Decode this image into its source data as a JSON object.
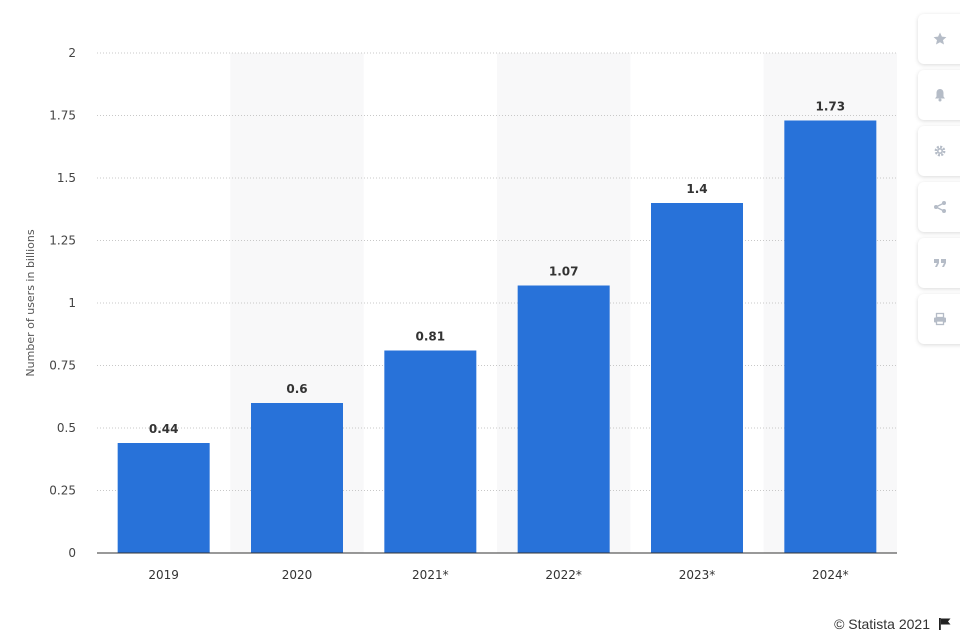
{
  "chart_data": {
    "type": "bar",
    "categories": [
      "2019",
      "2020",
      "2021*",
      "2022*",
      "2023*",
      "2024*"
    ],
    "values": [
      0.44,
      0.6,
      0.81,
      1.07,
      1.4,
      1.73
    ],
    "data_labels": [
      "0.44",
      "0.6",
      "0.81",
      "1.07",
      "1.4",
      "1.73"
    ],
    "ylabel": "Number of users in billions",
    "xlabel": "",
    "ylim": [
      0,
      2
    ],
    "yticks": [
      "0",
      "0.25",
      "0.5",
      "0.75",
      "1",
      "1.25",
      "1.5",
      "1.75",
      "2"
    ],
    "grid": true,
    "bar_color": "#2872d9",
    "band_color": "#f8f8f9"
  },
  "toolbar": {
    "buttons": [
      {
        "icon": "star-icon"
      },
      {
        "icon": "bell-icon"
      },
      {
        "icon": "gear-icon"
      },
      {
        "icon": "share-icon"
      },
      {
        "icon": "quote-icon"
      },
      {
        "icon": "print-icon"
      }
    ]
  },
  "credit": {
    "text": "© Statista 2021",
    "icon": "flag-icon"
  }
}
